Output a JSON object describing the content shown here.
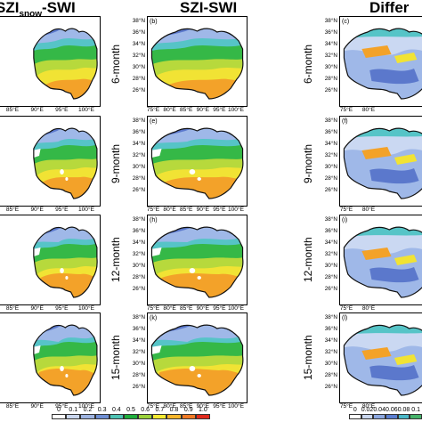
{
  "figure": {
    "column_titles": [
      {
        "main": "SZI",
        "sub": "snow",
        "tail": "-SWI"
      },
      {
        "main": "SZI-SWI",
        "sub": "",
        "tail": ""
      },
      {
        "main": "Differ",
        "sub": "",
        "tail": ""
      }
    ],
    "row_labels": [
      "6-month",
      "9-month",
      "12-month",
      "15-month"
    ],
    "panel_letters": {
      "middle": [
        "(b)",
        "(e)",
        "(h)",
        "(k)"
      ],
      "right": [
        "(c)",
        "(f)",
        "(i)",
        "(l)"
      ]
    },
    "lat_labels": [
      "38°N",
      "36°N",
      "34°N",
      "32°N",
      "30°N",
      "28°N",
      "26°N"
    ],
    "lon_labels_left": [
      "85°E",
      "90°E",
      "95°E",
      "100°E"
    ],
    "lon_labels_middle": [
      "75°E",
      "80°E",
      "85°E",
      "90°E",
      "95°E",
      "100°E"
    ],
    "lon_labels_right": [
      "75°E",
      "80°E"
    ],
    "colorbar_left": {
      "ticks": [
        "0",
        "0.1",
        "0.2",
        "0.3",
        "0.4",
        "0.5",
        "0.6",
        "0.7",
        "0.8",
        "0.9",
        "1.0"
      ],
      "colors": [
        "#ffffff",
        "#c9d6ee",
        "#9db3e0",
        "#6f8fd4",
        "#4ec3b4",
        "#1fae3c",
        "#9ad23a",
        "#f3ea30",
        "#f7b52a",
        "#f07a25",
        "#e02a1c"
      ]
    },
    "colorbar_right": {
      "ticks": [
        "0",
        "0.02",
        "0.04",
        "0.06",
        "0.08",
        "0.1"
      ],
      "colors": [
        "#ffffff",
        "#c9d6ee",
        "#8ca8e0",
        "#5b7fd1",
        "#49b7c7",
        "#46b36a"
      ]
    },
    "map_colors": {
      "deep_blue": "#5b78cc",
      "light_blue": "#9fb8e8",
      "pale_blue": "#cad8f2",
      "cyan": "#56c4c7",
      "green": "#35b847",
      "yellow_green": "#b7d93c",
      "yellow": "#f1e334",
      "orange": "#f3a229",
      "white": "#ffffff"
    }
  }
}
